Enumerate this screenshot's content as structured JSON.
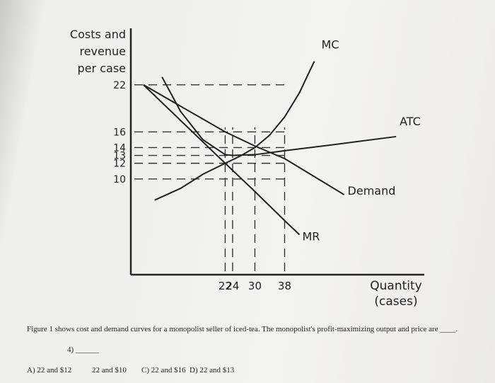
{
  "chart_data": {
    "type": "line",
    "y_label": [
      "Costs and",
      "revenue",
      "per case"
    ],
    "x_label": [
      "Quantity",
      "(cases)"
    ],
    "xlim": [
      -3.4,
      75.6
    ],
    "ylim": [
      -2.2,
      29.2
    ],
    "xticks": [
      22,
      24,
      30,
      38
    ],
    "yticks": [
      22,
      16,
      14,
      13,
      12,
      10
    ],
    "series": [
      {
        "name": "MC",
        "color": "#222222",
        "x": [
          3,
          10,
          16,
          22,
          26,
          30,
          34,
          38,
          42,
          46
        ],
        "values": [
          7.3,
          8.8,
          10.6,
          12,
          12.9,
          14,
          15.6,
          17.9,
          21,
          25
        ]
      },
      {
        "name": "ATC",
        "color": "#222222",
        "x": [
          5,
          10,
          16,
          22,
          24,
          30,
          38,
          50,
          68
        ],
        "values": [
          23,
          18.6,
          15,
          13.1,
          13,
          13.1,
          13.6,
          14.3,
          15.4
        ]
      },
      {
        "name": "Demand",
        "color": "#222222",
        "x": [
          0,
          22,
          30,
          38,
          54
        ],
        "values": [
          22,
          16,
          14.2,
          12.6,
          8
        ]
      },
      {
        "name": "MR",
        "color": "#222222",
        "x": [
          0,
          22,
          30,
          38,
          42
        ],
        "values": [
          22,
          12,
          8.4,
          4.7,
          2.9
        ]
      }
    ]
  },
  "question": {
    "text": "Figure 1 shows cost and demand curves for a monopolist seller of iced-tea. The monopolist's profit-maximizing output and price are ____.",
    "number": "4) ______",
    "choices": [
      "A) 22 and $12",
      "22 and $10",
      "C) 22 and $16",
      "D) 22 and $13"
    ]
  }
}
